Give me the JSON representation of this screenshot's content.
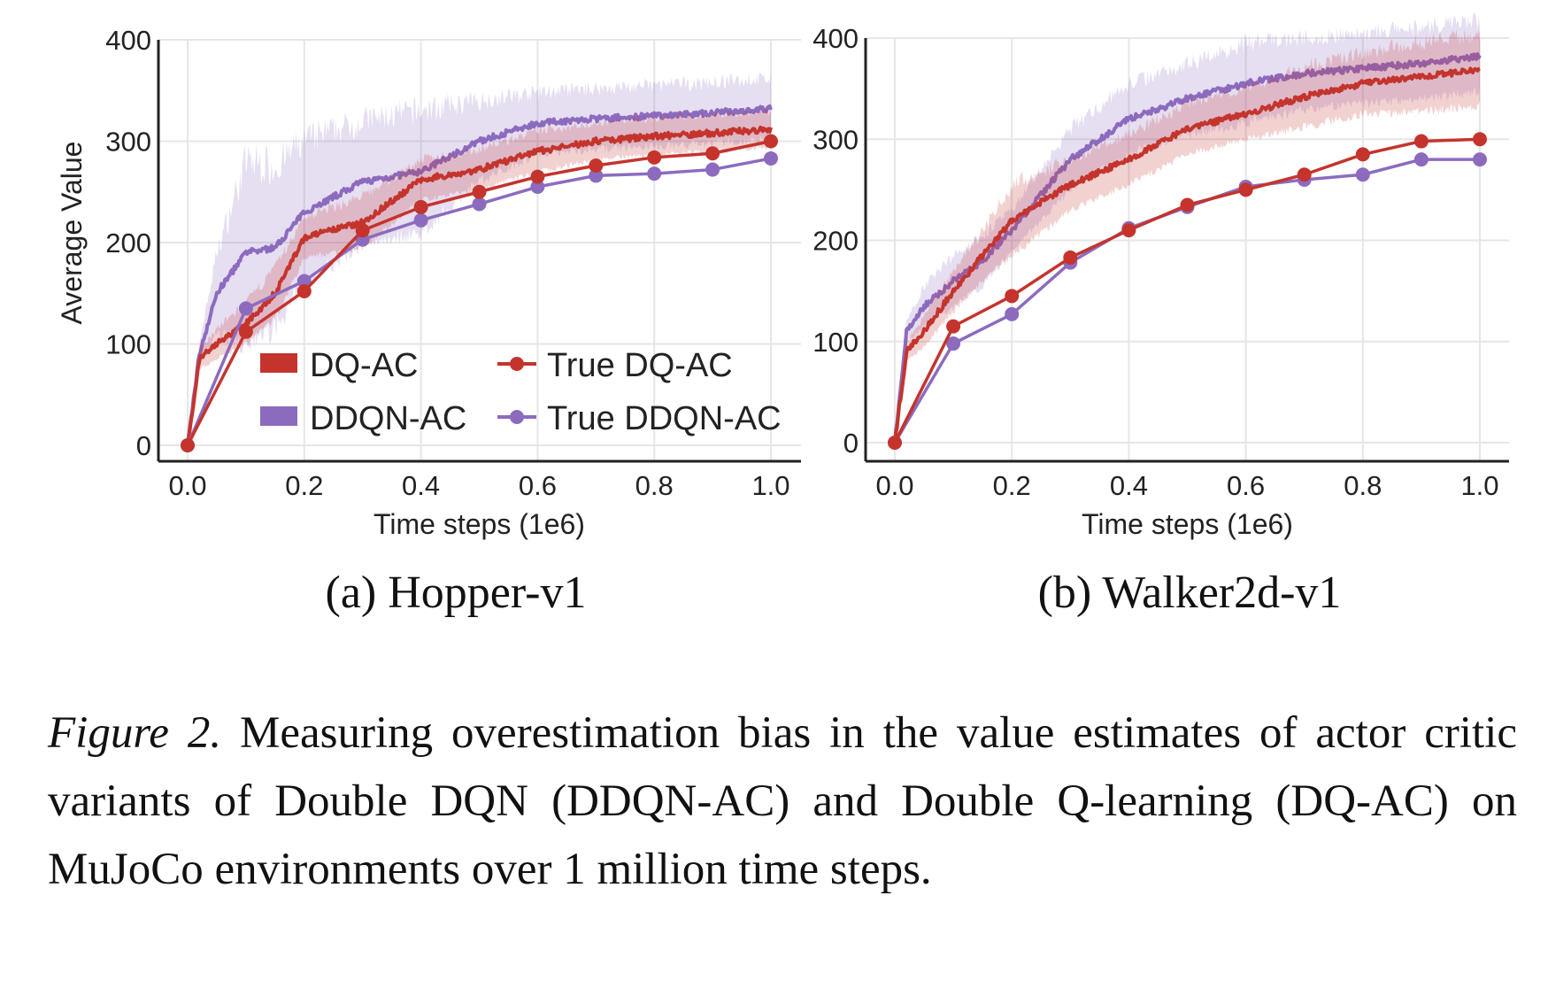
{
  "colors": {
    "dq": "#c4342d",
    "ddqn": "#8c6bbf"
  },
  "legend": {
    "dq": "DQ-AC",
    "ddqn": "DDQN-AC",
    "true_dq": "True DQ-AC",
    "true_ddqn": "True DDQN-AC",
    "placement": "lower-right (panel a)"
  },
  "caption": {
    "label": "Figure 2.",
    "text": "Measuring overestimation bias in the value estimates of actor critic variants of Double DQN (DDQN-AC) and Double Q-learning (DQ-AC) on MuJoCo environments over 1 million time steps."
  },
  "chart_data": [
    {
      "type": "line",
      "subtitle": "(a) Hopper-v1",
      "xlabel": "Time steps (1e6)",
      "ylabel": "Average Value",
      "xlim": [
        -0.05,
        1.05
      ],
      "ylim": [
        -16,
        400
      ],
      "xticks": [
        "0.0",
        "0.2",
        "0.4",
        "0.6",
        "0.8",
        "1.0"
      ],
      "yticks": [
        "0",
        "100",
        "200",
        "300",
        "400"
      ],
      "grid": true,
      "x": [
        0,
        0.02,
        0.05,
        0.1,
        0.15,
        0.2,
        0.3,
        0.4,
        0.5,
        0.6,
        0.7,
        0.8,
        0.9,
        1.0
      ],
      "series": [
        {
          "name": "DQ-AC",
          "values": [
            0,
            85,
            100,
            120,
            150,
            205,
            220,
            262,
            272,
            290,
            300,
            305,
            308,
            312
          ],
          "band": [
            0,
            10,
            15,
            20,
            25,
            20,
            25,
            20,
            20,
            20,
            18,
            18,
            18,
            18
          ]
        },
        {
          "name": "DDQN-AC",
          "values": [
            0,
            90,
            150,
            190,
            195,
            230,
            260,
            270,
            300,
            318,
            322,
            325,
            328,
            332
          ],
          "band": [
            0,
            10,
            40,
            90,
            80,
            70,
            60,
            60,
            40,
            30,
            30,
            30,
            30,
            30
          ]
        }
      ],
      "true_x": [
        0,
        0.1,
        0.2,
        0.3,
        0.4,
        0.5,
        0.6,
        0.7,
        0.8,
        0.9,
        1.0
      ],
      "true_series": [
        {
          "name": "True DQ-AC",
          "values": [
            0,
            112,
            152,
            212,
            235,
            250,
            265,
            276,
            284,
            288,
            300
          ]
        },
        {
          "name": "True DDQN-AC",
          "values": [
            0,
            135,
            162,
            203,
            222,
            238,
            255,
            266,
            268,
            272,
            283
          ]
        }
      ]
    },
    {
      "type": "line",
      "subtitle": "(b) Walker2d-v1",
      "xlabel": "Time steps (1e6)",
      "ylabel": "",
      "xlim": [
        -0.05,
        1.05
      ],
      "ylim": [
        -20,
        448
      ],
      "xticks": [
        "0.0",
        "0.2",
        "0.4",
        "0.6",
        "0.8",
        "1.0"
      ],
      "yticks": [
        "0",
        "100",
        "200",
        "300",
        "400"
      ],
      "grid": true,
      "x": [
        0,
        0.02,
        0.05,
        0.1,
        0.15,
        0.2,
        0.3,
        0.4,
        0.5,
        0.6,
        0.7,
        0.8,
        0.9,
        1.0
      ],
      "series": [
        {
          "name": "DQ-AC",
          "values": [
            0,
            90,
            110,
            150,
            185,
            220,
            255,
            280,
            310,
            325,
            342,
            355,
            362,
            368
          ],
          "band": [
            0,
            10,
            15,
            20,
            25,
            35,
            25,
            25,
            25,
            25,
            30,
            30,
            35,
            35
          ]
        },
        {
          "name": "DDQN-AC",
          "values": [
            0,
            110,
            135,
            160,
            180,
            210,
            280,
            320,
            340,
            355,
            365,
            370,
            375,
            382
          ],
          "band": [
            0,
            10,
            20,
            25,
            25,
            20,
            30,
            35,
            35,
            40,
            35,
            35,
            35,
            35
          ]
        }
      ],
      "true_x": [
        0,
        0.1,
        0.2,
        0.3,
        0.4,
        0.5,
        0.6,
        0.7,
        0.8,
        0.9,
        1.0
      ],
      "true_series": [
        {
          "name": "True DQ-AC",
          "values": [
            0,
            115,
            145,
            183,
            210,
            235,
            250,
            265,
            285,
            298,
            300
          ]
        },
        {
          "name": "True DDQN-AC",
          "values": [
            0,
            98,
            127,
            178,
            212,
            233,
            253,
            260,
            265,
            280,
            280
          ]
        }
      ]
    }
  ]
}
